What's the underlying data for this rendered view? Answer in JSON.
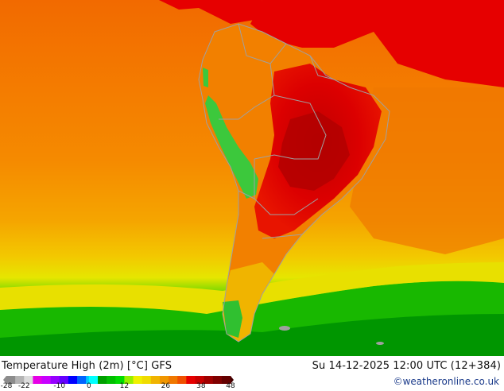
{
  "map": {
    "title": "Temperature High (2m) [°C] GFS",
    "valid_time": "Su 14-12-2025 12:00 UTC (12+384)",
    "credit": "©weatheronline.co.uk",
    "region": "South America",
    "colors": {
      "ocean_orange": "#f07d00",
      "ocean_light_orange": "#f5a000",
      "ocean_yellow": "#f0dc00",
      "ocean_green_light": "#5ad200",
      "ocean_green": "#10b400",
      "ocean_green_dark": "#008c00",
      "land_red": "#e60000",
      "land_dark_red": "#c80000",
      "mountain_green": "#32c832",
      "border_gray": "#a0a0a0"
    }
  },
  "legend": {
    "tick_labels": [
      "-28",
      "-22",
      "-10",
      "0",
      "12",
      "26",
      "38",
      "48"
    ],
    "stops": [
      {
        "value": -28,
        "color": "#8c8c8c"
      },
      {
        "value": -25,
        "color": "#b4b4b4"
      },
      {
        "value": -22,
        "color": "#dcdcdc"
      },
      {
        "value": -19,
        "color": "#e600e6"
      },
      {
        "value": -16,
        "color": "#c800ff"
      },
      {
        "value": -13,
        "color": "#9600ff"
      },
      {
        "value": -10,
        "color": "#6400ff"
      },
      {
        "value": -7,
        "color": "#0000ff"
      },
      {
        "value": -4,
        "color": "#0064ff"
      },
      {
        "value": -1,
        "color": "#00c8ff"
      },
      {
        "value": 0,
        "color": "#00ffff"
      },
      {
        "value": 3,
        "color": "#00a000"
      },
      {
        "value": 6,
        "color": "#00c000"
      },
      {
        "value": 9,
        "color": "#00dc00"
      },
      {
        "value": 12,
        "color": "#96f000"
      },
      {
        "value": 15,
        "color": "#f0f000"
      },
      {
        "value": 18,
        "color": "#f0dc00"
      },
      {
        "value": 21,
        "color": "#f0b400"
      },
      {
        "value": 24,
        "color": "#f09600"
      },
      {
        "value": 27,
        "color": "#f07800"
      },
      {
        "value": 30,
        "color": "#f05000"
      },
      {
        "value": 33,
        "color": "#e60000"
      },
      {
        "value": 36,
        "color": "#c80000"
      },
      {
        "value": 39,
        "color": "#a00000"
      },
      {
        "value": 42,
        "color": "#800000"
      },
      {
        "value": 45,
        "color": "#640000"
      },
      {
        "value": 48,
        "color": "#400000"
      }
    ]
  }
}
